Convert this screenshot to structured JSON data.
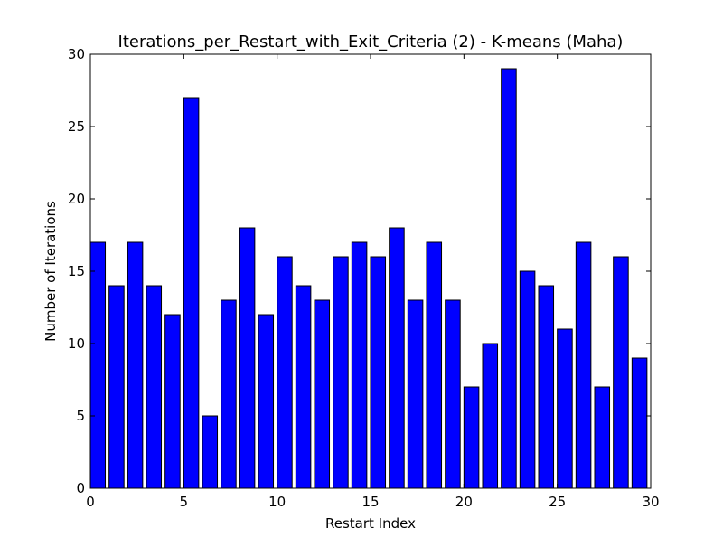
{
  "chart_data": {
    "type": "bar",
    "title": "Iterations_per_Restart_with_Exit_Criteria (2) - K-means (Maha)",
    "xlabel": "Restart Index",
    "ylabel": "Number of Iterations",
    "xlim": [
      0,
      30
    ],
    "ylim": [
      0,
      30
    ],
    "xticks": [
      0,
      5,
      10,
      15,
      20,
      25,
      30
    ],
    "yticks": [
      0,
      5,
      10,
      15,
      20,
      25,
      30
    ],
    "bar_width": 0.8,
    "grid": false,
    "x": [
      0,
      1,
      2,
      3,
      4,
      5,
      6,
      7,
      8,
      9,
      10,
      11,
      12,
      13,
      14,
      15,
      16,
      17,
      18,
      19,
      20,
      21,
      22,
      23,
      24,
      25,
      26,
      27,
      28,
      29
    ],
    "values": [
      17,
      14,
      17,
      14,
      12,
      27,
      5,
      13,
      18,
      12,
      16,
      14,
      13,
      16,
      17,
      16,
      18,
      13,
      17,
      13,
      7,
      10,
      29,
      15,
      14,
      11,
      17,
      7,
      16,
      9
    ],
    "bar_color": "#0000ff",
    "edge_color": "#000000"
  }
}
